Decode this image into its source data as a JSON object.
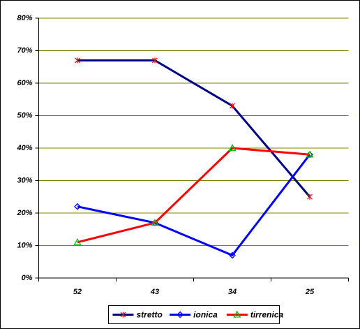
{
  "chart_data": {
    "type": "line",
    "categories": [
      "52",
      "43",
      "34",
      "25"
    ],
    "series": [
      {
        "name": "stretto",
        "color": "#000080",
        "marker": "star",
        "marker_color": "#ff0000",
        "values": [
          67,
          67,
          53,
          25
        ]
      },
      {
        "name": "ionica",
        "color": "#0000ff",
        "marker": "diamond",
        "marker_color": "#0000ff",
        "values": [
          22,
          17,
          7,
          38
        ]
      },
      {
        "name": "tirrenica",
        "color": "#ff0000",
        "marker": "triangle",
        "marker_color": "#00c000",
        "values": [
          11,
          17,
          40,
          38
        ]
      }
    ],
    "ylim": [
      0,
      80
    ],
    "yticks": [
      {
        "value": 0,
        "label": "0%"
      },
      {
        "value": 10,
        "label": "10%"
      },
      {
        "value": 20,
        "label": "20%"
      },
      {
        "value": 30,
        "label": "30%"
      },
      {
        "value": 40,
        "label": "40%"
      },
      {
        "value": 50,
        "label": "50%"
      },
      {
        "value": 60,
        "label": "60%"
      },
      {
        "value": 70,
        "label": "70%"
      },
      {
        "value": 80,
        "label": "80%"
      }
    ],
    "grid": true,
    "grid_color": "#808000",
    "legend": "bottom"
  }
}
